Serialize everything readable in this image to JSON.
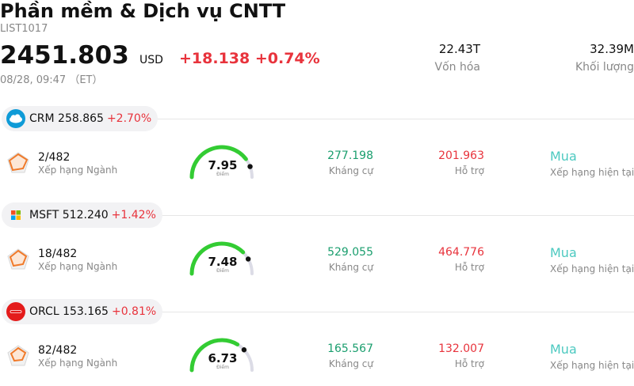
{
  "header": {
    "title": "Phần mềm & Dịch vụ CNTT",
    "code": "LIST1017",
    "price": "2451.803",
    "currency": "USD",
    "change": "+18.138 +0.74%",
    "time": "08/28, 09:47 （ET）"
  },
  "stats": {
    "market_cap_value": "22.43T",
    "market_cap_label": "Vốn hóa",
    "volume_value": "32.39M",
    "volume_label": "Khối lượng"
  },
  "colors": {
    "positive_red": "#e8333c",
    "resistance_green": "#1a9e6e",
    "buy_teal": "#4cc9c0",
    "gauge_green": "#33cc33",
    "gauge_gray": "#dcdce6"
  },
  "labels": {
    "rank": "Xếp hạng Ngành",
    "score": "Điểm",
    "resistance": "Kháng cự",
    "support": "Hỗ trợ",
    "rating": "Xếp hạng hiện tại"
  },
  "stocks": [
    {
      "ticker_line": "CRM 258.865",
      "change": "+2.70%",
      "logo_icon": "salesforce-cloud-icon",
      "rank": "2/482",
      "score": "7.95",
      "score_fraction": 0.795,
      "resistance": "277.198",
      "support": "201.963",
      "rating": "Mua"
    },
    {
      "ticker_line": "MSFT 512.240",
      "change": "+1.42%",
      "logo_icon": "microsoft-windows-icon",
      "rank": "18/482",
      "score": "7.48",
      "score_fraction": 0.748,
      "resistance": "529.055",
      "support": "464.776",
      "rating": "Mua"
    },
    {
      "ticker_line": "ORCL 153.165",
      "change": "+0.81%",
      "logo_icon": "oracle-logo-icon",
      "rank": "82/482",
      "score": "6.73",
      "score_fraction": 0.673,
      "resistance": "165.567",
      "support": "132.007",
      "rating": "Mua"
    }
  ]
}
